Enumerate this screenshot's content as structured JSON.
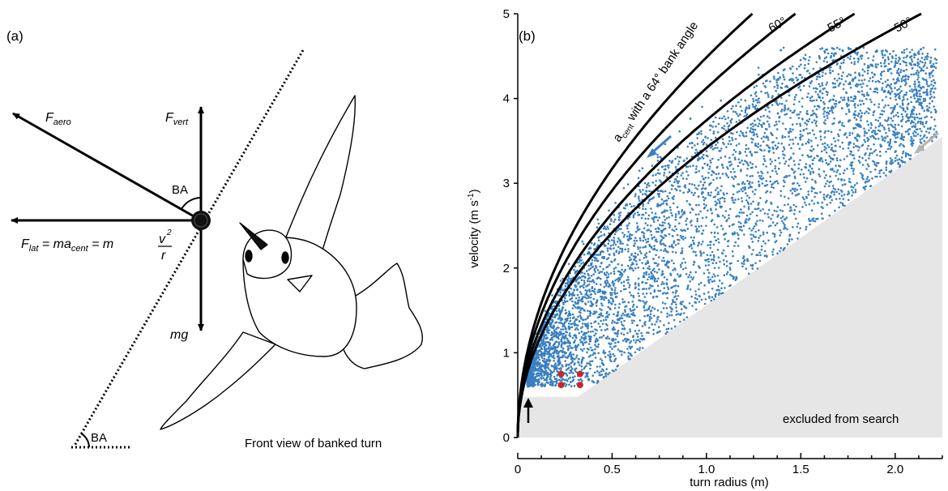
{
  "panel_a": {
    "label": "(a)",
    "f_aero": "F",
    "f_aero_sub": "aero",
    "f_vert": "F",
    "f_vert_sub": "vert",
    "bank_angle": "BA",
    "bank_angle_ground": "BA",
    "f_lat_pre": "F",
    "f_lat_sub": "lat",
    "f_lat_eq": " = ma",
    "f_lat_sub2": "cent",
    "f_lat_eq2": " =  m",
    "f_lat_v": "v",
    "f_lat_pow": "2",
    "f_lat_r": "r",
    "mg": "mg",
    "caption": "Front view of banked turn"
  },
  "panel_b": {
    "label": "(b)",
    "curve_label_main": "a",
    "curve_label_sub": "cent",
    "curve_label_rest": " with a 64° bank angle",
    "excluded_label": "excluded from search",
    "colors": {
      "points": "#3a7fc1",
      "shade": "#e6e6e6",
      "red": "#c62828",
      "grey_arrow": "#b3b3b3",
      "blue_arrow": "#3a7fc1"
    }
  },
  "chart_data": {
    "type": "scatter",
    "xlabel": "turn radius (m)",
    "ylabel_main": "velocity (m s",
    "ylabel_sup": "-1",
    "ylabel_close": ")",
    "xlim": [
      0,
      2.25
    ],
    "ylim": [
      0,
      5
    ],
    "x_ticks": [
      0,
      0.5,
      1.0,
      1.5,
      2.0
    ],
    "x_tick_labels": [
      "0",
      "0.5",
      "1.0",
      "1.5",
      "2.0"
    ],
    "y_ticks": [
      0,
      1,
      2,
      3,
      4,
      5
    ],
    "y_tick_labels": [
      "0",
      "1",
      "2",
      "3",
      "4",
      "5"
    ],
    "bank_curves": [
      {
        "angle": 64,
        "label": ""
      },
      {
        "angle": 60,
        "label": "60°"
      },
      {
        "angle": 55,
        "label": "55°"
      },
      {
        "angle": 50,
        "label": "50°"
      }
    ],
    "red_points": [
      [
        0.23,
        0.75
      ],
      [
        0.33,
        0.75
      ],
      [
        0.23,
        0.62
      ],
      [
        0.33,
        0.62
      ]
    ],
    "scatter_count": 5200
  }
}
